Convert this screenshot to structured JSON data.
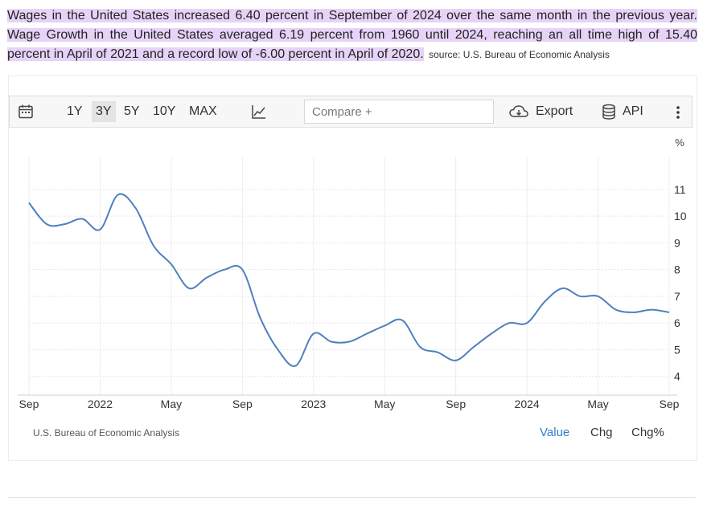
{
  "summary": {
    "text": "Wages in the United States increased 6.40 percent in September of 2024 over the same month in the previous year. Wage Growth in the United States averaged 6.19 percent from 1960 until 2024, reaching an all time high of 15.40 percent in April of 2021 and a record low of -6.00 percent in April of 2020.",
    "source": "source: U.S. Bureau of Economic Analysis"
  },
  "toolbar": {
    "ranges": [
      "1Y",
      "3Y",
      "5Y",
      "10Y",
      "MAX"
    ],
    "active_range": "3Y",
    "compare_placeholder": "Compare +",
    "export_label": "Export",
    "api_label": "API"
  },
  "footer": {
    "source": "U.S. Bureau of Economic Analysis",
    "tabs": [
      "Value",
      "Chg",
      "Chg%"
    ],
    "active_tab": "Value"
  },
  "colors": {
    "line": "#4f80be",
    "highlight": "#e7d3f7",
    "active_tab": "#2f7ec9"
  },
  "chart_data": {
    "type": "line",
    "title": "",
    "xlabel": "",
    "ylabel": "%",
    "ylim": [
      3.3,
      12.2
    ],
    "xlim": [
      "2021-09",
      "2024-09"
    ],
    "y_ticks": [
      4,
      5,
      6,
      7,
      8,
      9,
      10,
      11
    ],
    "x_ticks": [
      {
        "label": "Sep",
        "at": "2021-09"
      },
      {
        "label": "2022",
        "at": "2022-01"
      },
      {
        "label": "May",
        "at": "2022-05"
      },
      {
        "label": "Sep",
        "at": "2022-09"
      },
      {
        "label": "2023",
        "at": "2023-01"
      },
      {
        "label": "May",
        "at": "2023-05"
      },
      {
        "label": "Sep",
        "at": "2023-09"
      },
      {
        "label": "2024",
        "at": "2024-01"
      },
      {
        "label": "May",
        "at": "2024-05"
      },
      {
        "label": "Sep",
        "at": "2024-09"
      }
    ],
    "grid": true,
    "legend": "none",
    "series": [
      {
        "name": "",
        "x": [
          "2021-09",
          "2021-10",
          "2021-11",
          "2021-12",
          "2022-01",
          "2022-02",
          "2022-03",
          "2022-04",
          "2022-05",
          "2022-06",
          "2022-07",
          "2022-08",
          "2022-09",
          "2022-10",
          "2022-11",
          "2022-12",
          "2023-01",
          "2023-02",
          "2023-03",
          "2023-04",
          "2023-05",
          "2023-06",
          "2023-07",
          "2023-08",
          "2023-09",
          "2023-10",
          "2023-11",
          "2023-12",
          "2024-01",
          "2024-02",
          "2024-03",
          "2024-04",
          "2024-05",
          "2024-06",
          "2024-07",
          "2024-08",
          "2024-09"
        ],
        "values": [
          10.5,
          9.7,
          9.7,
          9.9,
          9.5,
          10.8,
          10.3,
          8.9,
          8.2,
          7.3,
          7.7,
          8.0,
          8.0,
          6.2,
          5.0,
          4.4,
          5.6,
          5.3,
          5.3,
          5.6,
          5.9,
          6.1,
          5.1,
          4.9,
          4.6,
          5.1,
          5.6,
          6.0,
          6.0,
          6.8,
          7.3,
          7.0,
          7.0,
          6.5,
          6.4,
          6.5,
          6.4
        ]
      }
    ]
  }
}
